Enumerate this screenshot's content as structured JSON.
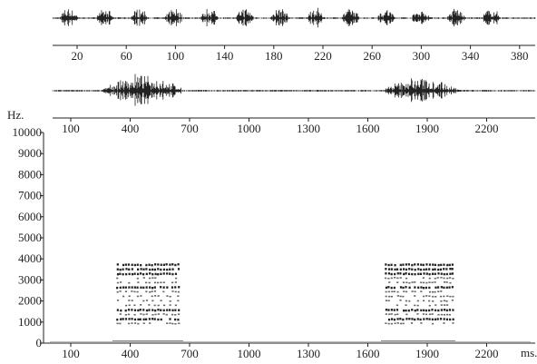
{
  "panels": [
    {
      "xticks": [
        20,
        60,
        100,
        140,
        180,
        220,
        260,
        300,
        340,
        380
      ]
    },
    {
      "xticks": [
        100,
        400,
        700,
        1000,
        1300,
        1600,
        1900,
        2200
      ]
    }
  ],
  "spectrogram": {
    "y_unit": "Hz.",
    "yticks": [
      0,
      1000,
      2000,
      3000,
      4000,
      5000,
      6000,
      7000,
      8000,
      9000,
      10000
    ],
    "xticks": [
      100,
      400,
      700,
      1000,
      1300,
      1600,
      1900,
      2200
    ],
    "x_unit": "ms."
  }
}
